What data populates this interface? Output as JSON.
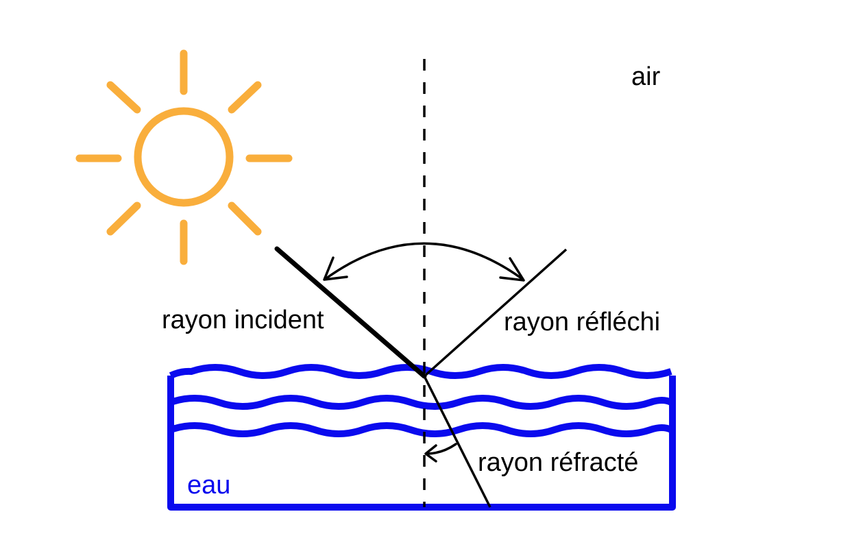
{
  "labels": {
    "air": "air",
    "incident": "rayon incident",
    "reflected": "rayon réfléchi",
    "refracted": "rayon réfracté",
    "water": "eau"
  },
  "colors": {
    "sun": "#F9AE3C",
    "water": "#0A0AEE",
    "ray": "#000000",
    "text": "#000000"
  },
  "icons": {
    "sun": "sun-icon"
  }
}
